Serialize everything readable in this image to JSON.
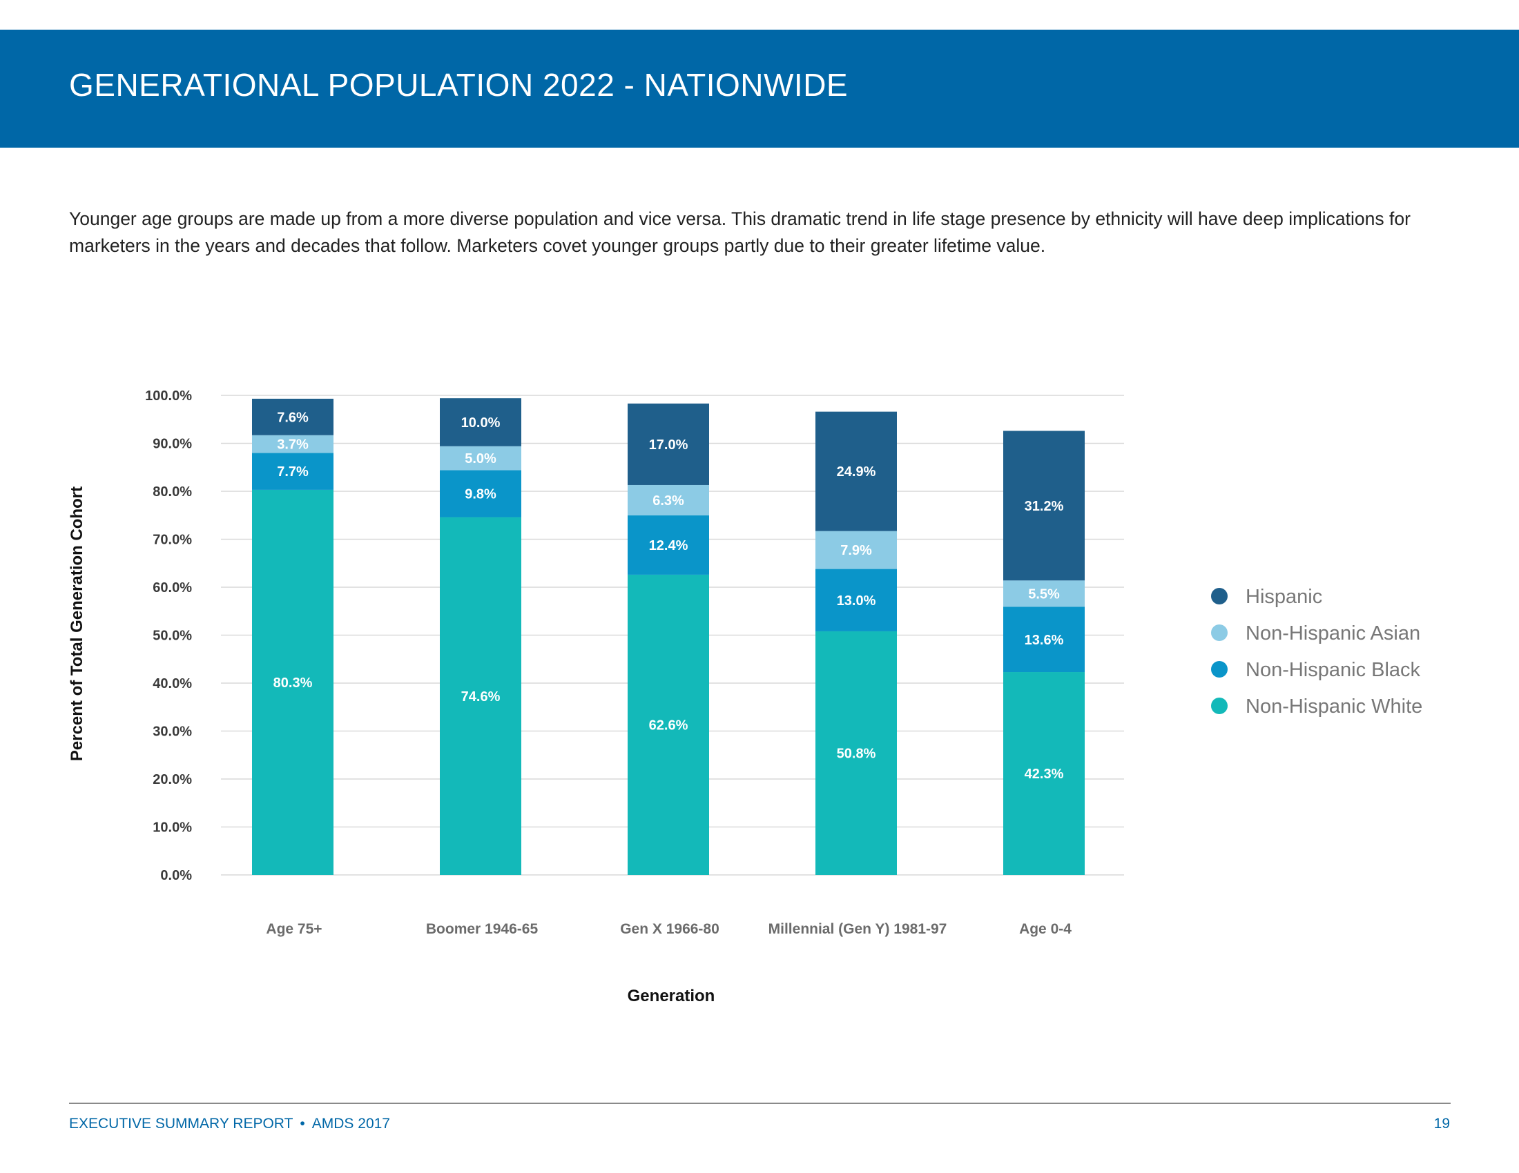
{
  "header": {
    "title": "GENERATIONAL POPULATION 2022 - NATIONWIDE"
  },
  "intro": {
    "text": "Younger age groups are made up from a more diverse population and vice versa. This dramatic trend in life stage presence by ethnicity will have deep implications for marketers in the years and decades that follow. Marketers covet younger groups partly due to their greater lifetime value."
  },
  "chart_data": {
    "type": "bar",
    "stacked": true,
    "title": "",
    "xlabel": "Generation",
    "ylabel": "Percent of Total Generation Cohort",
    "ylim": [
      0,
      100
    ],
    "yticks": [
      "0.0%",
      "10.0%",
      "20.0%",
      "30.0%",
      "40.0%",
      "50.0%",
      "60.0%",
      "70.0%",
      "80.0%",
      "90.0%",
      "100.0%"
    ],
    "grid": true,
    "legend_position": "right",
    "categories": [
      "Age 75+",
      "Boomer 1946-65",
      "Gen X 1966-80",
      "Millennial (Gen Y) 1981-97",
      "Age 0-4"
    ],
    "series": [
      {
        "name": "Non-Hispanic White",
        "color": "#13b9b9",
        "values": [
          80.3,
          74.6,
          62.6,
          50.8,
          42.3
        ],
        "labels": [
          "80.3%",
          "74.6%",
          "62.6%",
          "50.8%",
          "42.3%"
        ]
      },
      {
        "name": "Non-Hispanic Black",
        "color": "#0a95c9",
        "values": [
          7.7,
          9.8,
          12.4,
          13.0,
          13.6
        ],
        "labels": [
          "7.7%",
          "9.8%",
          "12.4%",
          "13.0%",
          "13.6%"
        ]
      },
      {
        "name": "Non-Hispanic Asian",
        "color": "#8ccbe5",
        "values": [
          3.7,
          5.0,
          6.3,
          7.9,
          5.5
        ],
        "labels": [
          "3.7%",
          "5.0%",
          "6.3%",
          "7.9%",
          "5.5%"
        ]
      },
      {
        "name": "Hispanic",
        "color": "#1f5f8b",
        "values": [
          7.6,
          10.0,
          17.0,
          24.9,
          31.2
        ],
        "labels": [
          "7.6%",
          "10.0%",
          "17.0%",
          "24.9%",
          "31.2%"
        ]
      }
    ],
    "legend_order": [
      "Hispanic",
      "Non-Hispanic Asian",
      "Non-Hispanic Black",
      "Non-Hispanic White"
    ]
  },
  "footer": {
    "report": "EXECUTIVE SUMMARY REPORT",
    "separator": "•",
    "edition": "AMDS 2017",
    "page": "19"
  }
}
